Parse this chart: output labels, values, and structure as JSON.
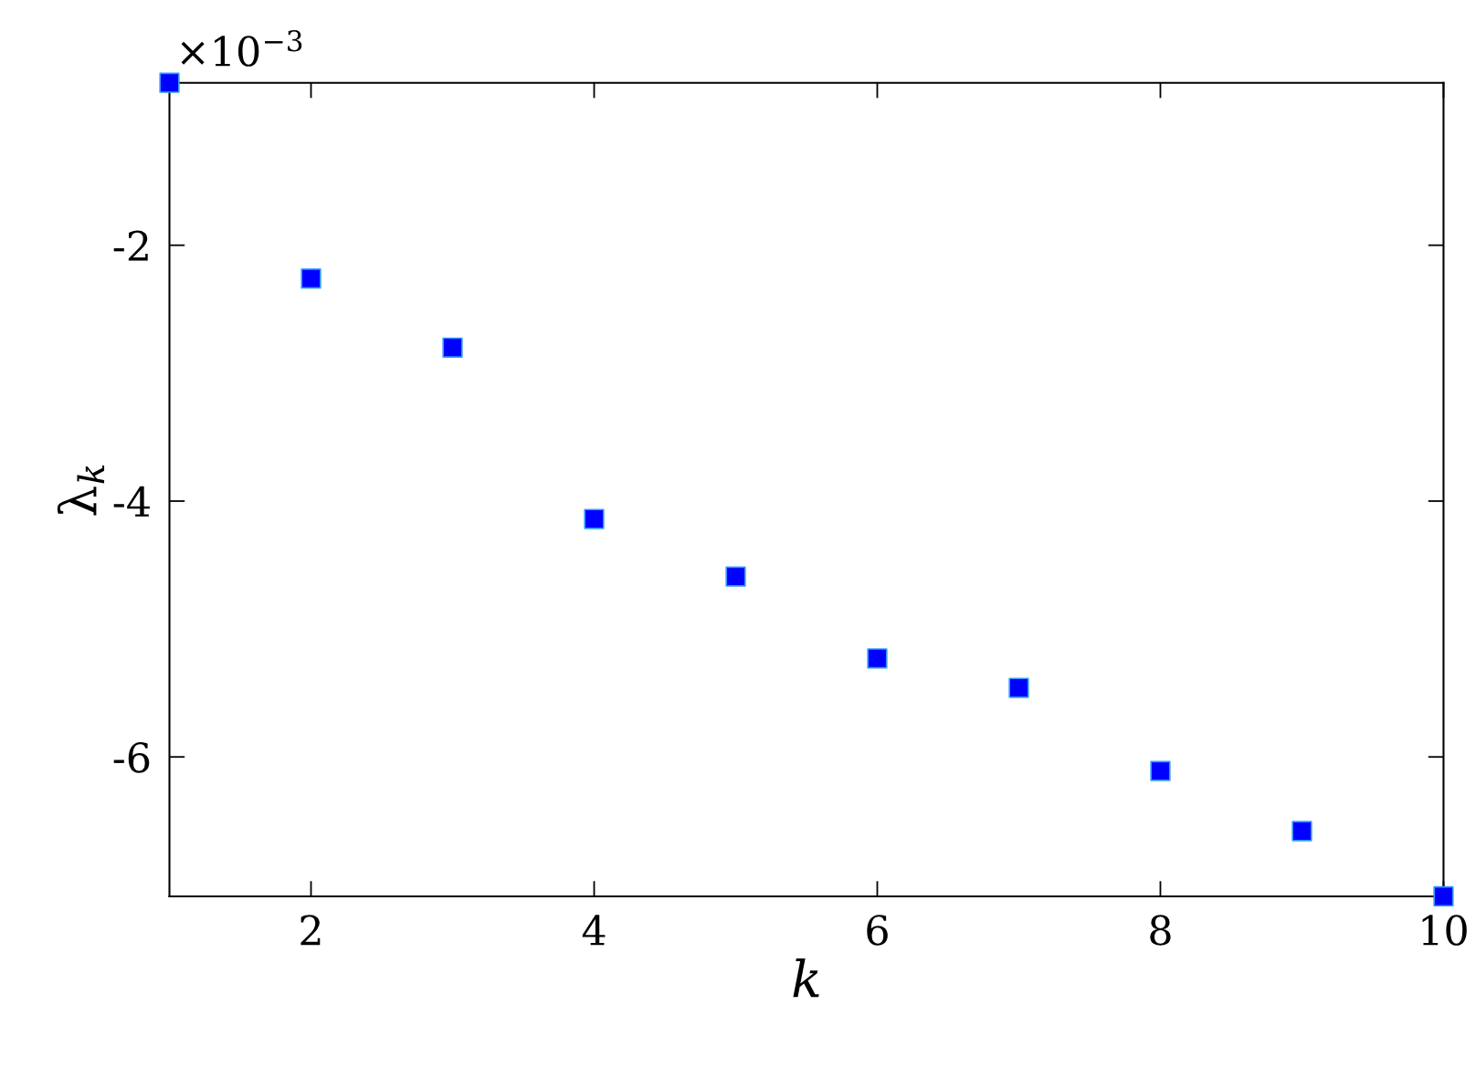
{
  "chart_data": {
    "type": "scatter",
    "xlabel": "k",
    "ylabel": "λ$_{k}$",
    "annotations": [
      "×10$^{−3}$"
    ],
    "x": [
      1,
      2,
      3,
      4,
      5,
      6,
      7,
      8,
      9,
      10
    ],
    "series": [
      {
        "color": "#0000ff",
        "values": [
          -0.73,
          -2.26,
          -2.8,
          -4.14,
          -4.59,
          -5.23,
          -5.46,
          -6.11,
          -6.58,
          -7.09
        ]
      }
    ],
    "marker": "square",
    "xlim": [
      1,
      10
    ],
    "xticks": [
      2,
      4,
      6,
      8,
      10
    ],
    "ylim": [
      -7.09,
      -0.73
    ],
    "yticks": [
      -6,
      -4,
      -2
    ],
    "grid": false,
    "legend": false
  }
}
